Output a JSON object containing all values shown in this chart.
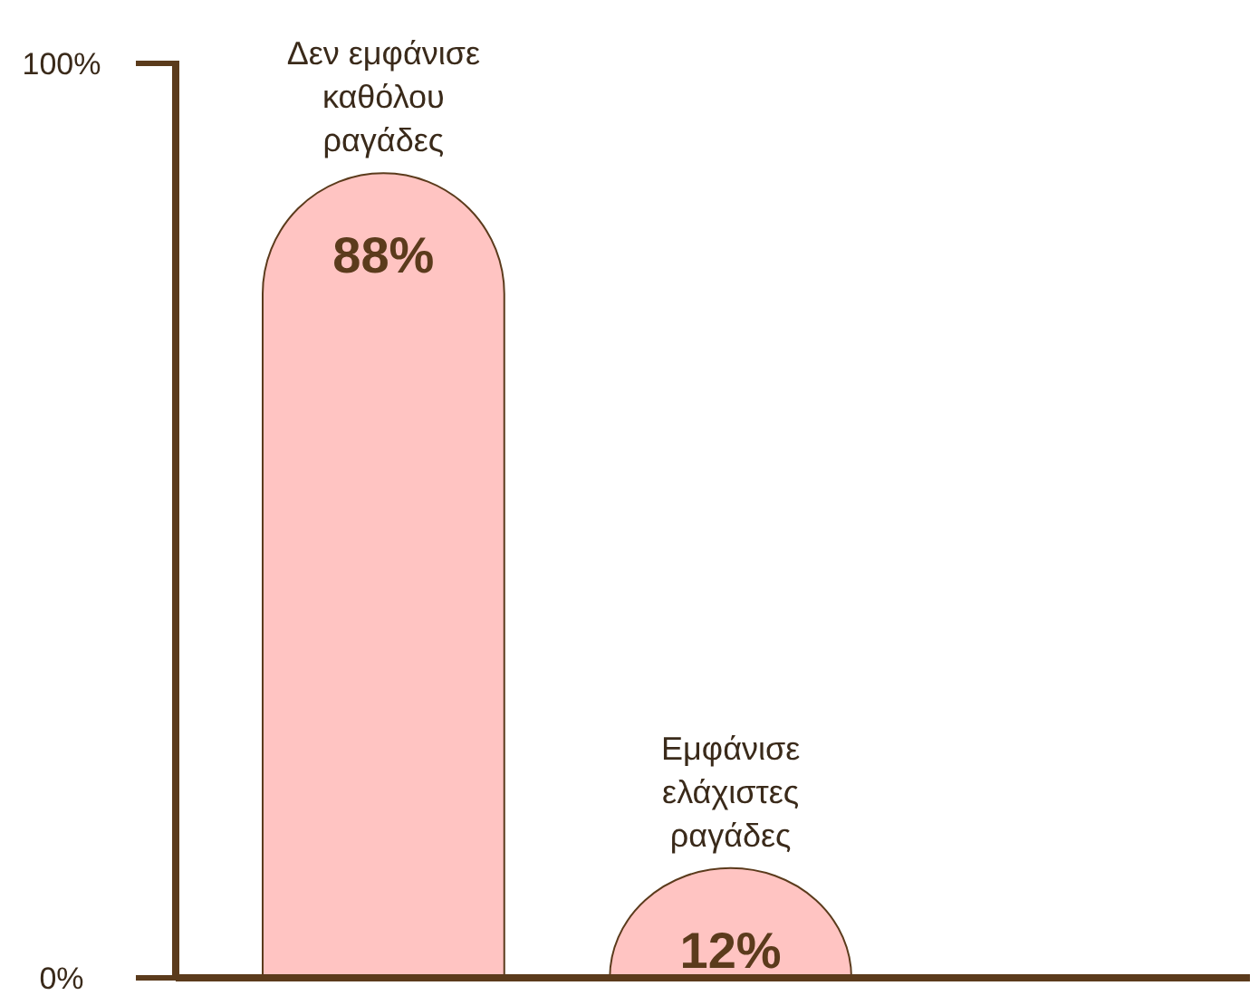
{
  "chart_data": {
    "type": "bar",
    "categories": [
      "Δεν εμφάνισε καθόλου ραγάδες",
      "Εμφάνισε ελάχιστες ραγάδες"
    ],
    "values": [
      88,
      12
    ],
    "value_labels": [
      "88%",
      "12%"
    ],
    "color": "#ffc4c2",
    "ylim": [
      0,
      100
    ],
    "yticks": [
      {
        "value": 0,
        "label": "0%"
      },
      {
        "value": 100,
        "label": "100%"
      }
    ],
    "grid": false
  }
}
